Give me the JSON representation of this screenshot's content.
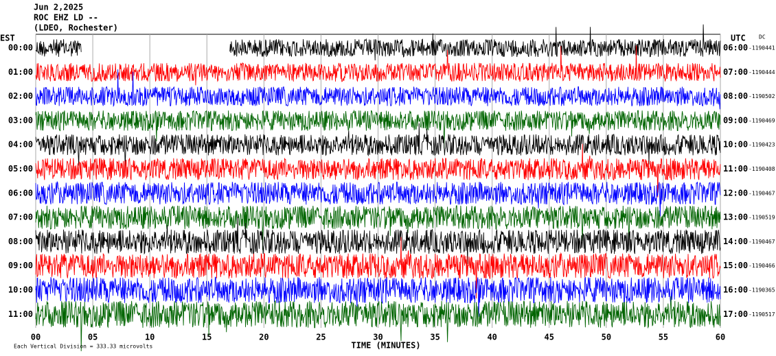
{
  "chart_data": {
    "type": "helicorder",
    "title_lines": [
      "Jun 2,2025",
      "ROC EHZ LD --",
      "(LDEO, Rochester)"
    ],
    "left_axis_label": "EST",
    "right_axis_label": "UTC",
    "offset_label": "DC",
    "xlabel": "TIME (MINUTES)",
    "footnote": "Each Vertical Division =  333.33 microvolts",
    "xlim": [
      0,
      60
    ],
    "xticks": [
      {
        "value": 0,
        "label": "00"
      },
      {
        "value": 5,
        "label": "05"
      },
      10,
      15,
      20,
      25,
      30,
      35,
      40,
      45,
      50,
      55,
      60
    ],
    "grid": true,
    "rows": [
      {
        "est": "00:00",
        "utc": "06:00",
        "dc": "-1190441",
        "color": "#000000",
        "gap": [
          4,
          17
        ]
      },
      {
        "est": "01:00",
        "utc": "07:00",
        "dc": "-1190444",
        "color": "#ff0000"
      },
      {
        "est": "02:00",
        "utc": "08:00",
        "dc": "-1190502",
        "color": "#0000ff"
      },
      {
        "est": "03:00",
        "utc": "09:00",
        "dc": "-1190469",
        "color": "#006400"
      },
      {
        "est": "04:00",
        "utc": "10:00",
        "dc": "-1190423",
        "color": "#000000"
      },
      {
        "est": "05:00",
        "utc": "11:00",
        "dc": "-1190408",
        "color": "#ff0000"
      },
      {
        "est": "06:00",
        "utc": "12:00",
        "dc": "-1190467",
        "color": "#0000ff"
      },
      {
        "est": "07:00",
        "utc": "13:00",
        "dc": "-1190519",
        "color": "#006400"
      },
      {
        "est": "08:00",
        "utc": "14:00",
        "dc": "-1190467",
        "color": "#000000"
      },
      {
        "est": "09:00",
        "utc": "15:00",
        "dc": "-1190466",
        "color": "#ff0000"
      },
      {
        "est": "10:00",
        "utc": "16:00",
        "dc": "-1190365",
        "color": "#0000ff"
      },
      {
        "est": "11:00",
        "utc": "17:00",
        "dc": "-1190517",
        "color": "#006400"
      }
    ]
  }
}
